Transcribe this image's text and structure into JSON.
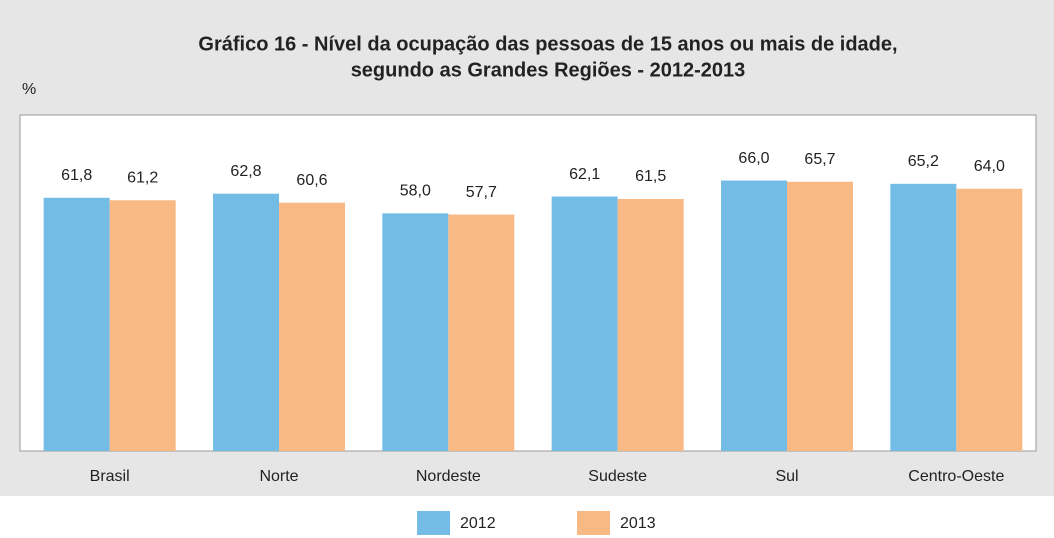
{
  "chart_data": {
    "type": "bar",
    "title_lines": [
      "Gráfico 16 - Nível da ocupação das pessoas de 15 anos ou mais de idade,",
      "segundo as Grandes Regiões - 2012-2013"
    ],
    "y_label": "%",
    "categories": [
      "Brasil",
      "Norte",
      "Nordeste",
      "Sudeste",
      "Sul",
      "Centro-Oeste"
    ],
    "series": [
      {
        "name": "2012",
        "color": "#72bce6",
        "values": [
          61.8,
          62.8,
          58.0,
          62.1,
          66.0,
          65.2
        ],
        "value_labels": [
          "61,8",
          "62,8",
          "58,0",
          "62,1",
          "66,0",
          "65,2"
        ]
      },
      {
        "name": "2013",
        "color": "#f9b985",
        "values": [
          61.2,
          60.6,
          57.7,
          61.5,
          65.7,
          64.0
        ],
        "value_labels": [
          "61,2",
          "60,6",
          "57,7",
          "61,5",
          "65,7",
          "64,0"
        ]
      }
    ],
    "ylim": [
      0,
      82
    ],
    "grid": false
  }
}
